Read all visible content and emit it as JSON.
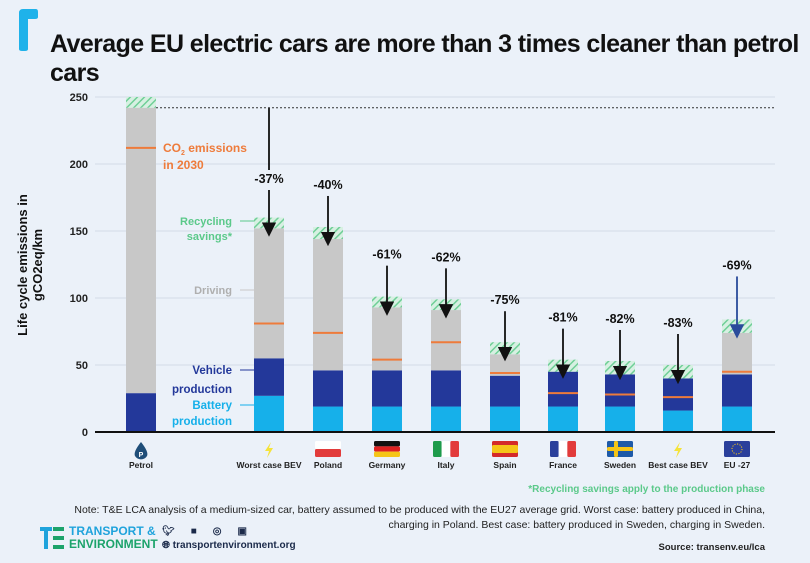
{
  "title": "Average EU electric cars are more than 3 times cleaner than petrol cars",
  "colors": {
    "background": "#EBF1F9",
    "driving": "#C8C8C8",
    "vehicle_production": "#23389A",
    "battery_production": "#16B0EA",
    "recycling": "#6FCF97",
    "co2_2030": "#EE7B3B",
    "accent": "#1FA3DC"
  },
  "chart_data": {
    "type": "bar",
    "stacked": true,
    "title": "Average EU electric cars are more than 3 times cleaner than petrol cars",
    "xlabel": "",
    "ylabel": "Life cycle emissions in gCO2eq/km",
    "ylim": [
      0,
      250
    ],
    "yticks": [
      0,
      50,
      100,
      150,
      200,
      250
    ],
    "grid": true,
    "categories": [
      "Petrol",
      "Worst case BEV",
      "Poland",
      "Germany",
      "Italy",
      "Spain",
      "France",
      "Sweden",
      "Best case BEV",
      "EU -27"
    ],
    "category_icons": [
      "fuel-drop-icon",
      "lightning-icon",
      "poland-flag",
      "germany-flag",
      "italy-flag",
      "spain-flag",
      "france-flag",
      "sweden-flag",
      "lightning-icon",
      "eu-flag"
    ],
    "series": [
      {
        "name": "Battery production",
        "values": [
          0,
          27,
          19,
          19,
          19,
          19,
          19,
          19,
          16,
          19
        ]
      },
      {
        "name": "Vehicle production",
        "values": [
          29,
          28,
          27,
          27,
          27,
          23,
          26,
          24,
          24,
          24
        ]
      },
      {
        "name": "Driving",
        "values": [
          213,
          97,
          98,
          47,
          45,
          16,
          0,
          0,
          0,
          31
        ]
      },
      {
        "name": "Recycling savings*",
        "values": [
          8,
          8,
          9,
          8,
          8,
          9,
          9,
          10,
          10,
          10
        ]
      }
    ],
    "co2_2030": [
      212,
      81,
      74,
      54,
      67,
      44,
      29,
      28,
      26,
      45
    ],
    "reduction_labels": [
      "",
      "-37%",
      "-40%",
      "-61%",
      "-62%",
      "-75%",
      "-81%",
      "-82%",
      "-83%",
      "-69%"
    ],
    "reference_line": 242,
    "annotations": {
      "co2_2030": "CO₂ emissions in 2030",
      "recycling": "Recycling savings*",
      "driving": "Driving",
      "vehicle": "Vehicle production",
      "battery": "Battery production"
    }
  },
  "footer": {
    "recycling_note": "*Recycling savings apply to the production phase",
    "note_line1": "Note: T&E LCA analysis of a medium-sized car, battery assumed to be produced with the EU27 average grid. Worst case: battery produced in China,",
    "note_line2": "charging in Poland. Best case: battery produced in Sweden, charging in Sweden.",
    "source": "Source: transenv.eu/lca",
    "logo_line1": "TRANSPORT &",
    "logo_line2": "ENVIRONMENT",
    "social": [
      "twitter-icon",
      "facebook-icon",
      "instagram-icon",
      "linkedin-icon"
    ],
    "website": "transportenvironment.org"
  }
}
